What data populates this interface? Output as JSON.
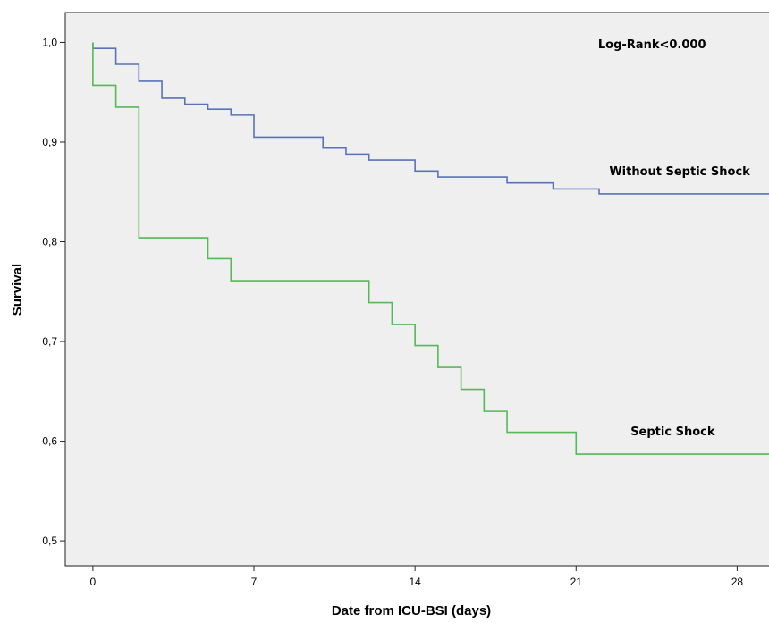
{
  "chart_data": {
    "type": "line",
    "title": "",
    "xlabel": "Date from ICU-BSI (days)",
    "ylabel": "Survival",
    "xlim": [
      -1.2,
      29.5
    ],
    "ylim": [
      0.475,
      1.03
    ],
    "xticks": [
      0,
      7,
      14,
      21,
      28
    ],
    "xtick_labels": [
      "0",
      "7",
      "14",
      "21",
      "28"
    ],
    "yticks": [
      0.5,
      0.6,
      0.7,
      0.8,
      0.9,
      1.0
    ],
    "ytick_labels": [
      "0,5",
      "0,6",
      "0,7",
      "0,8",
      "0,9",
      "1,0"
    ],
    "grid": false,
    "legend": "none",
    "step": true,
    "background_color": "#efefef",
    "series": [
      {
        "name": "Without Septic Shock",
        "color": "#5a73b8",
        "x": [
          0,
          1,
          2,
          3,
          4,
          5,
          6,
          7,
          10,
          11,
          12,
          14,
          15,
          18,
          20,
          22,
          29.5
        ],
        "y": [
          0.994,
          0.978,
          0.961,
          0.944,
          0.938,
          0.933,
          0.927,
          0.905,
          0.894,
          0.888,
          0.882,
          0.871,
          0.865,
          0.859,
          0.853,
          0.848,
          0.848
        ]
      },
      {
        "name": "Septic Shock",
        "color": "#57b857",
        "x": [
          0,
          1,
          2,
          5,
          6,
          12,
          13,
          14,
          15,
          16,
          17,
          18,
          21,
          29.5
        ],
        "y": [
          0.957,
          0.935,
          0.804,
          0.783,
          0.761,
          0.739,
          0.717,
          0.696,
          0.674,
          0.652,
          0.63,
          0.609,
          0.587,
          0.587
        ]
      }
    ],
    "annotations": [
      {
        "text": "Log-Rank<0.000",
        "x": 24.3,
        "y": 0.994
      },
      {
        "text": "Without Septic Shock",
        "x": 25.5,
        "y": 0.867
      },
      {
        "text": "Septic Shock",
        "x": 25.2,
        "y": 0.606
      }
    ]
  }
}
